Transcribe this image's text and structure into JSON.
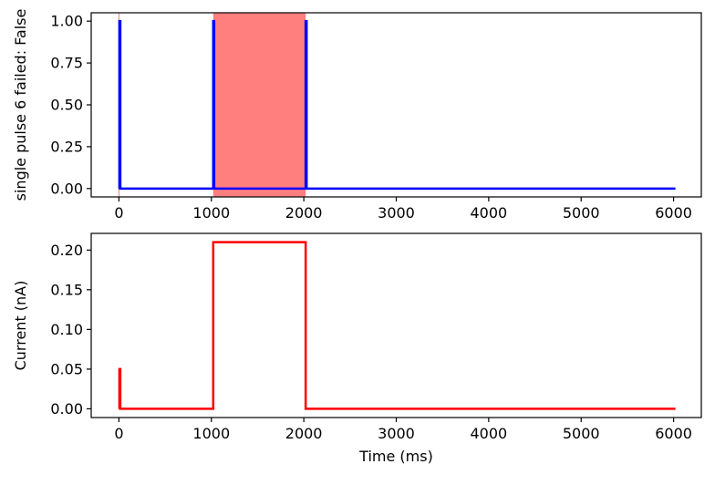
{
  "chart_data": [
    {
      "type": "line",
      "ylabel": "single pulse 6 failed: False",
      "xlabel": "",
      "xlim": [
        -300,
        6300
      ],
      "ylim": [
        -0.05,
        1.05
      ],
      "xticks": [
        0,
        1000,
        2000,
        3000,
        4000,
        5000,
        6000
      ],
      "yticks": [
        0.0,
        0.25,
        0.5,
        0.75,
        1.0
      ],
      "xtick_labels": [
        "0",
        "1000",
        "2000",
        "3000",
        "4000",
        "5000",
        "6000"
      ],
      "ytick_labels": [
        "0.00",
        "0.25",
        "0.50",
        "0.75",
        "1.00"
      ],
      "grid": false,
      "highlight_spans": [
        {
          "x0": -5,
          "x1": 5,
          "color": "#ff0000",
          "alpha": 0.5
        },
        {
          "x0": 1020,
          "x1": 2020,
          "color": "#ff0000",
          "alpha": 0.5
        }
      ],
      "series": [
        {
          "color": "#0000ff",
          "x": [
            0,
            5,
            5,
            15,
            15,
            1020,
            1020,
            1030,
            1030,
            2020,
            2020,
            2030,
            2030,
            6020
          ],
          "y": [
            0,
            0,
            1,
            1,
            0,
            0,
            1,
            1,
            0,
            0,
            1,
            1,
            0,
            0
          ]
        }
      ]
    },
    {
      "type": "line",
      "ylabel": "Current (nA)",
      "xlabel": "Time (ms)",
      "xlim": [
        -300,
        6300
      ],
      "ylim": [
        -0.011,
        0.221
      ],
      "xticks": [
        0,
        1000,
        2000,
        3000,
        4000,
        5000,
        6000
      ],
      "yticks": [
        0.0,
        0.05,
        0.1,
        0.15,
        0.2
      ],
      "xtick_labels": [
        "0",
        "1000",
        "2000",
        "3000",
        "4000",
        "5000",
        "6000"
      ],
      "ytick_labels": [
        "0.00",
        "0.05",
        "0.10",
        "0.15",
        "0.20"
      ],
      "grid": false,
      "highlight_spans": [],
      "series": [
        {
          "color": "#ff0000",
          "x": [
            0,
            5,
            5,
            15,
            15,
            1020,
            1020,
            2020,
            2020,
            6020
          ],
          "y": [
            0,
            0,
            0.05,
            0.05,
            0,
            0,
            0.21,
            0.21,
            0,
            0
          ]
        }
      ]
    }
  ]
}
